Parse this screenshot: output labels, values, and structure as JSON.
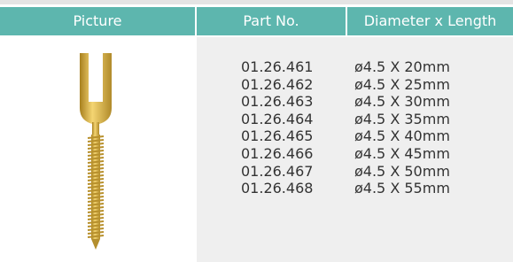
{
  "header": {
    "columns": [
      "Picture",
      "Part No.",
      "Diameter x Length"
    ]
  },
  "table": {
    "rows": [
      [
        "01.26.461",
        "ø4.5 X 20mm"
      ],
      [
        "01.26.462",
        "ø4.5 X 25mm"
      ],
      [
        "01.26.463",
        "ø4.5 X 30mm"
      ],
      [
        "01.26.464",
        "ø4.5 X 35mm"
      ],
      [
        "01.26.465",
        "ø4.5 X 40mm"
      ],
      [
        "01.26.466",
        "ø4.5 X 45mm"
      ],
      [
        "01.26.467",
        "ø4.5 X 50mm"
      ],
      [
        "01.26.468",
        "ø4.5 X 55mm"
      ]
    ]
  }
}
